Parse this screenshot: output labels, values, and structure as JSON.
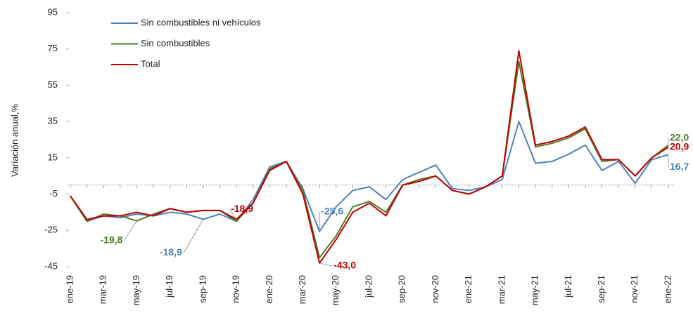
{
  "chart_data": {
    "type": "line",
    "y_label": "Variación anual,%",
    "categories": [
      "ene-19",
      null,
      "mar-19",
      null,
      "may-19",
      null,
      "jul-19",
      null,
      "sep-19",
      null,
      "nov-19",
      null,
      "ene-20",
      null,
      "mar-20",
      null,
      "may-20",
      null,
      "jul-20",
      null,
      "sep-20",
      null,
      "nov-20",
      null,
      "ene-21",
      null,
      "mar-21",
      null,
      "may-21",
      null,
      "jul-21",
      null,
      "sep-21",
      null,
      "nov-21",
      null,
      "ene-22"
    ],
    "series": [
      {
        "name": "Sin combustibles ni vehículos",
        "color": "#4f81bd",
        "values": [
          -6,
          -20,
          -17,
          -18,
          -16,
          -17,
          -15,
          -16,
          -18.9,
          -16,
          -20,
          -8,
          10,
          13,
          -2,
          -25.6,
          -12,
          -3,
          -1,
          -8,
          3,
          7,
          11,
          -2,
          -3,
          -1,
          3,
          35,
          12,
          13,
          17,
          22,
          8,
          13,
          1,
          14,
          16.7
        ],
        "value_labels": [
          null,
          null,
          null,
          null,
          null,
          null,
          null,
          null,
          "-18,9",
          null,
          null,
          null,
          null,
          null,
          null,
          "-25,6",
          null,
          null,
          null,
          null,
          null,
          null,
          null,
          null,
          null,
          null,
          null,
          null,
          null,
          null,
          null,
          null,
          null,
          null,
          null,
          null,
          "16,7"
        ]
      },
      {
        "name": "Sin combustibles",
        "color": "#4f7a28",
        "values": [
          -6,
          -20,
          -16,
          -17,
          -19.8,
          -16,
          -13,
          -15,
          -14,
          -14,
          -20,
          -10,
          9,
          13,
          -3,
          -40,
          -28,
          -12,
          -9,
          -15,
          0,
          3,
          5,
          -3,
          -5,
          -1,
          5,
          68,
          21,
          23,
          26,
          31,
          13,
          14,
          5,
          15,
          22.0
        ],
        "value_labels": [
          null,
          null,
          null,
          null,
          "-19,8",
          null,
          null,
          null,
          null,
          null,
          null,
          null,
          null,
          null,
          null,
          null,
          null,
          null,
          null,
          null,
          null,
          null,
          null,
          null,
          null,
          null,
          null,
          null,
          null,
          null,
          null,
          null,
          null,
          null,
          null,
          null,
          "22,0"
        ]
      },
      {
        "name": "Total",
        "color": "#c00000",
        "values": [
          -6,
          -19,
          -17,
          -17,
          -15,
          -17,
          -13,
          -15,
          -14,
          -14,
          -18.9,
          -10,
          8,
          13,
          -5,
          -43.0,
          -30,
          -15,
          -10,
          -17,
          0,
          2,
          5,
          -3,
          -5,
          -1,
          5,
          74,
          22,
          24,
          27,
          32,
          14,
          14,
          5,
          15,
          20.9
        ],
        "value_labels": [
          null,
          null,
          null,
          null,
          null,
          null,
          null,
          null,
          null,
          null,
          "-18,9",
          null,
          null,
          null,
          null,
          "-43,0",
          null,
          null,
          null,
          null,
          null,
          null,
          null,
          null,
          null,
          null,
          null,
          null,
          null,
          null,
          null,
          null,
          null,
          null,
          null,
          null,
          "20,9"
        ]
      }
    ],
    "ylim": [
      -45,
      95
    ],
    "yticks": [
      -45,
      -25,
      -5,
      15,
      35,
      55,
      75,
      95
    ],
    "grid": false
  }
}
